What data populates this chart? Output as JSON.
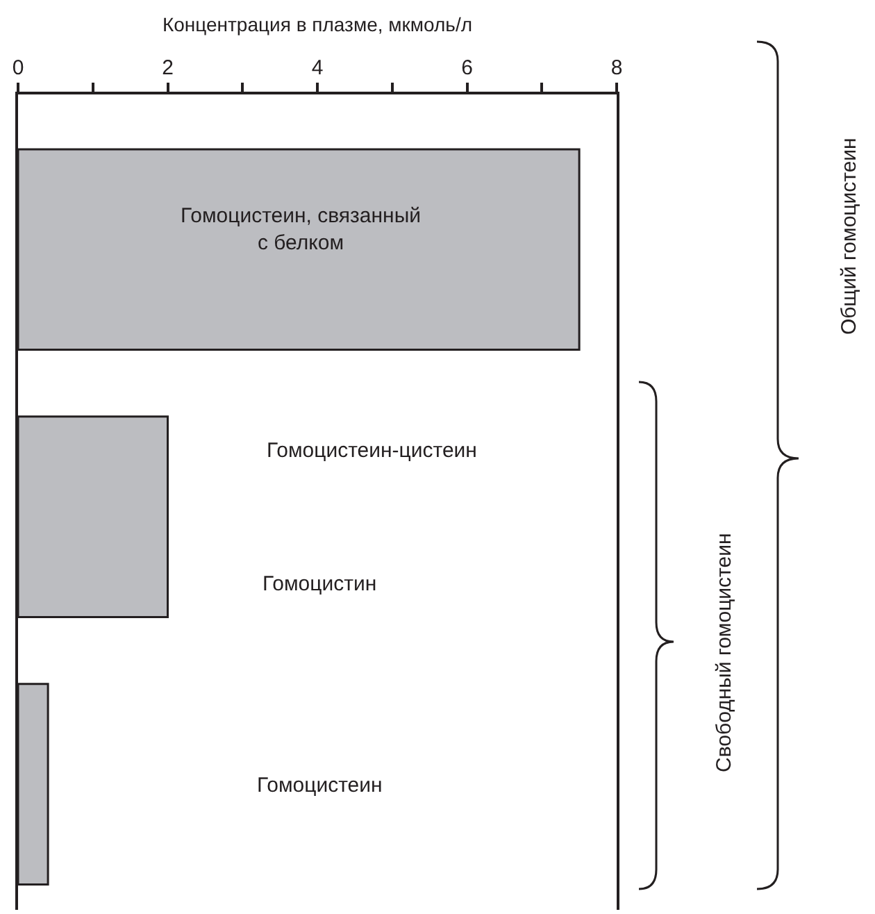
{
  "chart_data": {
    "type": "bar",
    "orientation": "horizontal",
    "xlabel": "Концентрация в плазме, мкмоль/л",
    "categories": [
      null,
      null,
      null
    ],
    "values": [
      7.5,
      2.0,
      0.4
    ],
    "color": "#bcbdc1",
    "xlim": [
      0,
      8
    ],
    "xticks": [
      0,
      {
        "value": 1,
        "label": null
      },
      2,
      {
        "value": 3,
        "label": null
      },
      4,
      {
        "value": 5,
        "label": null
      },
      6,
      {
        "value": 7,
        "label": null
      },
      8
    ],
    "tick_labels": "x",
    "annotations": [
      "Гомоцистеин, связанный\nс белком",
      "Гомоцистеин-цистеин",
      "Гомоцистин",
      "Гомоцистеин",
      "Свободный гомоцистеин",
      "Общий гомоцистеин"
    ]
  }
}
